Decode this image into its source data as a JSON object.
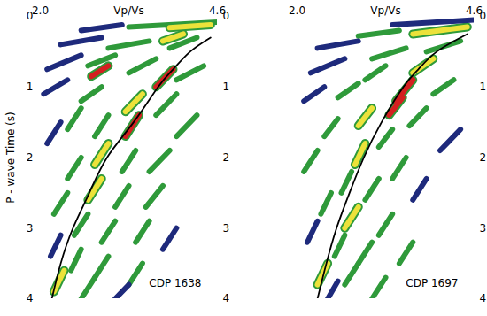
{
  "chart_data": [
    {
      "type": "heatmap",
      "annotation": "CDP 1638",
      "xlabel": "Vp/Vs",
      "ylabel": "P - wave Time (s)",
      "xlim": [
        2.0,
        4.6
      ],
      "xticks": [
        {
          "value": 2,
          "label": "2.0"
        },
        {
          "value": 4.6,
          "label": "4.6"
        }
      ],
      "ylim": [
        0,
        4
      ],
      "yticks": [
        0,
        1,
        2,
        3,
        4
      ],
      "levels": [
        1,
        2,
        3,
        4
      ],
      "level_colors": [
        "#1e2a7c",
        "#2f9a3a",
        "#ece23a",
        "#d42020"
      ],
      "streaks": [
        [
          4.6,
          0.08,
          3.3,
          0.15,
          2
        ],
        [
          4.5,
          0.12,
          3.9,
          0.16,
          3
        ],
        [
          3.2,
          0.12,
          2.6,
          0.2,
          1
        ],
        [
          2.9,
          0.3,
          2.3,
          0.4,
          1
        ],
        [
          3.6,
          0.35,
          3.0,
          0.45,
          2
        ],
        [
          4.3,
          0.3,
          3.9,
          0.45,
          2
        ],
        [
          4.1,
          0.25,
          3.8,
          0.35,
          3
        ],
        [
          2.6,
          0.55,
          2.1,
          0.75,
          1
        ],
        [
          2.4,
          0.9,
          2.05,
          1.1,
          1
        ],
        [
          3.1,
          0.55,
          2.7,
          0.7,
          2
        ],
        [
          3.7,
          0.6,
          3.3,
          0.8,
          2
        ],
        [
          3.95,
          0.75,
          3.7,
          1.0,
          4
        ],
        [
          3.0,
          0.7,
          2.75,
          0.85,
          4
        ],
        [
          4.4,
          0.7,
          4.0,
          0.9,
          2
        ],
        [
          2.9,
          1.0,
          2.6,
          1.2,
          2
        ],
        [
          3.5,
          1.1,
          3.25,
          1.35,
          3
        ],
        [
          3.45,
          1.4,
          3.25,
          1.7,
          4
        ],
        [
          4.0,
          1.1,
          3.7,
          1.4,
          2
        ],
        [
          2.6,
          1.3,
          2.4,
          1.6,
          2
        ],
        [
          3.0,
          1.4,
          2.8,
          1.7,
          2
        ],
        [
          4.3,
          1.4,
          4.0,
          1.7,
          2
        ],
        [
          2.3,
          1.5,
          2.1,
          1.8,
          1
        ],
        [
          3.0,
          1.8,
          2.8,
          2.1,
          3
        ],
        [
          3.4,
          1.9,
          3.2,
          2.2,
          2
        ],
        [
          3.9,
          1.9,
          3.6,
          2.2,
          2
        ],
        [
          2.6,
          2.0,
          2.4,
          2.3,
          2
        ],
        [
          2.9,
          2.3,
          2.7,
          2.6,
          3
        ],
        [
          3.3,
          2.4,
          3.1,
          2.7,
          2
        ],
        [
          3.8,
          2.4,
          3.55,
          2.7,
          2
        ],
        [
          2.4,
          2.5,
          2.2,
          2.8,
          2
        ],
        [
          2.7,
          2.8,
          2.5,
          3.1,
          2
        ],
        [
          3.1,
          2.9,
          2.9,
          3.2,
          2
        ],
        [
          3.6,
          2.9,
          3.4,
          3.2,
          2
        ],
        [
          2.3,
          3.1,
          2.15,
          3.4,
          1
        ],
        [
          2.6,
          3.3,
          2.45,
          3.6,
          2
        ],
        [
          3.0,
          3.4,
          2.8,
          3.7,
          2
        ],
        [
          3.5,
          3.5,
          3.3,
          3.8,
          2
        ],
        [
          2.35,
          3.6,
          2.2,
          3.9,
          3
        ],
        [
          2.8,
          3.7,
          2.6,
          4.0,
          2
        ],
        [
          3.3,
          3.8,
          3.1,
          4.0,
          1
        ],
        [
          4.0,
          3.0,
          3.8,
          3.3,
          1
        ]
      ],
      "pick": {
        "color": "#000000",
        "x": [
          4.5,
          4.2,
          3.95,
          3.73,
          3.37,
          2.98,
          2.72,
          2.48,
          2.3,
          2.17
        ],
        "y": [
          0.3,
          0.5,
          0.75,
          1.0,
          1.5,
          2.0,
          2.5,
          3.0,
          3.5,
          4.0
        ]
      }
    },
    {
      "type": "heatmap",
      "annotation": "CDP 1697",
      "xlabel": "Vp/Vs",
      "xlim": [
        2.0,
        4.6
      ],
      "xticks": [
        {
          "value": 2,
          "label": "2.0"
        },
        {
          "value": 4.6,
          "label": "4.6"
        }
      ],
      "ylim": [
        0,
        4
      ],
      "yticks": [
        0,
        1,
        2,
        3,
        4
      ],
      "levels": [
        1,
        2,
        3,
        4
      ],
      "level_colors": [
        "#1e2a7c",
        "#2f9a3a",
        "#ece23a",
        "#d42020"
      ],
      "streaks": [
        [
          4.6,
          0.05,
          3.4,
          0.12,
          1
        ],
        [
          4.5,
          0.15,
          3.7,
          0.25,
          3
        ],
        [
          3.5,
          0.2,
          2.9,
          0.28,
          2
        ],
        [
          2.9,
          0.35,
          2.3,
          0.45,
          1
        ],
        [
          4.4,
          0.35,
          3.9,
          0.5,
          2
        ],
        [
          3.6,
          0.45,
          3.1,
          0.6,
          2
        ],
        [
          2.7,
          0.6,
          2.2,
          0.8,
          1
        ],
        [
          4.0,
          0.6,
          3.7,
          0.8,
          3
        ],
        [
          3.3,
          0.7,
          3.0,
          0.9,
          2
        ],
        [
          3.7,
          0.9,
          3.45,
          1.2,
          4
        ],
        [
          3.55,
          1.15,
          3.35,
          1.4,
          4
        ],
        [
          2.9,
          0.95,
          2.6,
          1.15,
          2
        ],
        [
          4.3,
          0.9,
          4.0,
          1.1,
          2
        ],
        [
          2.4,
          1.0,
          2.1,
          1.2,
          1
        ],
        [
          3.1,
          1.3,
          2.9,
          1.55,
          3
        ],
        [
          3.9,
          1.3,
          3.65,
          1.55,
          2
        ],
        [
          2.6,
          1.45,
          2.4,
          1.7,
          2
        ],
        [
          3.4,
          1.6,
          3.2,
          1.85,
          2
        ],
        [
          4.4,
          1.6,
          4.1,
          1.9,
          1
        ],
        [
          3.0,
          1.8,
          2.85,
          2.1,
          3
        ],
        [
          2.3,
          1.9,
          2.1,
          2.2,
          2
        ],
        [
          3.6,
          2.0,
          3.4,
          2.3,
          2
        ],
        [
          2.8,
          2.2,
          2.65,
          2.5,
          2
        ],
        [
          3.2,
          2.3,
          3.0,
          2.6,
          2
        ],
        [
          3.9,
          2.3,
          3.7,
          2.6,
          1
        ],
        [
          2.5,
          2.5,
          2.35,
          2.8,
          2
        ],
        [
          2.9,
          2.7,
          2.7,
          3.0,
          3
        ],
        [
          3.4,
          2.8,
          3.2,
          3.1,
          2
        ],
        [
          2.3,
          2.9,
          2.15,
          3.2,
          1
        ],
        [
          2.7,
          3.1,
          2.55,
          3.4,
          2
        ],
        [
          3.1,
          3.2,
          2.9,
          3.5,
          2
        ],
        [
          3.7,
          3.2,
          3.5,
          3.5,
          2
        ],
        [
          2.45,
          3.5,
          2.3,
          3.8,
          3
        ],
        [
          2.9,
          3.5,
          2.7,
          3.8,
          2
        ],
        [
          3.3,
          3.7,
          3.1,
          4.0,
          2
        ],
        [
          2.6,
          3.75,
          2.45,
          4.0,
          1
        ]
      ],
      "pick": {
        "color": "#000000",
        "x": [
          4.5,
          4.05,
          3.78,
          3.56,
          3.24,
          2.98,
          2.77,
          2.58,
          2.43,
          2.3
        ],
        "y": [
          0.25,
          0.5,
          0.75,
          1.0,
          1.5,
          2.0,
          2.5,
          3.0,
          3.5,
          4.0
        ]
      }
    }
  ]
}
